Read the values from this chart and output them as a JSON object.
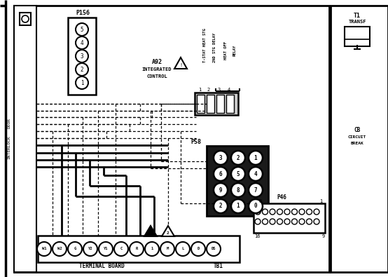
{
  "bg_color": "#ffffff",
  "fg_color": "#000000",
  "fig_width": 5.54,
  "fig_height": 3.95,
  "dpi": 100,
  "p156_pins": [
    "5",
    "4",
    "3",
    "2",
    "1"
  ],
  "p58_nums": [
    [
      "3",
      "2",
      "1"
    ],
    [
      "6",
      "5",
      "4"
    ],
    [
      "9",
      "8",
      "7"
    ],
    [
      "2",
      "1",
      "0"
    ]
  ],
  "terminal_pins": [
    "W1",
    "W2",
    "G",
    "Y2",
    "Y1",
    "C",
    "R",
    "1",
    "M",
    "L",
    "D",
    "DS"
  ]
}
